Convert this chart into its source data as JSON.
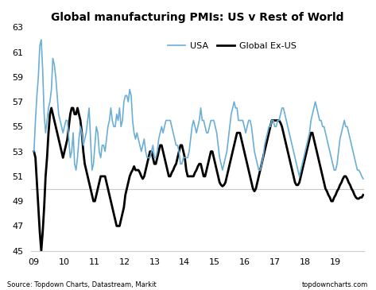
{
  "title": "Global manufacturing PMIs: US v Rest of World",
  "source_left": "Source: Topdown Charts, Datastream, Markit",
  "source_right": "topdowncharts.com",
  "ylim": [
    45,
    63
  ],
  "yticks": [
    45,
    47,
    49,
    51,
    53,
    55,
    57,
    59,
    61,
    63
  ],
  "xtick_labels": [
    "09",
    "10",
    "11",
    "12",
    "13",
    "14",
    "15",
    "16",
    "17",
    "18",
    "19"
  ],
  "usa_color": "#6baed6",
  "global_color": "#000000",
  "legend_usa": "USA",
  "legend_global": "Global Ex-US",
  "background_color": "#ffffff",
  "hline_y": 50.0,
  "hline_color": "#c8c8c8",
  "usa": [
    53.0,
    55.5,
    57.5,
    59.0,
    61.5,
    62.0,
    59.5,
    56.0,
    54.5,
    55.5,
    56.5,
    57.0,
    58.0,
    60.5,
    60.0,
    59.0,
    57.5,
    56.0,
    55.5,
    55.0,
    54.5,
    55.0,
    55.5,
    55.5,
    54.0,
    52.5,
    53.0,
    54.5,
    52.0,
    51.5,
    52.5,
    54.0,
    55.0,
    54.5,
    53.5,
    54.0,
    54.5,
    55.5,
    56.5,
    54.0,
    51.5,
    52.0,
    53.5,
    55.0,
    54.5,
    53.0,
    52.5,
    53.5,
    53.5,
    53.0,
    54.0,
    55.0,
    55.5,
    56.5,
    55.5,
    55.0,
    55.0,
    56.0,
    55.5,
    56.5,
    55.0,
    55.5,
    57.0,
    57.5,
    57.5,
    57.0,
    58.0,
    57.5,
    55.5,
    54.5,
    54.0,
    54.5,
    54.0,
    53.5,
    53.0,
    53.5,
    54.0,
    53.0,
    52.5,
    52.5,
    52.5,
    53.0,
    53.5,
    52.5,
    52.5,
    53.0,
    54.0,
    54.5,
    55.0,
    54.5,
    55.0,
    55.5,
    55.5,
    55.5,
    55.5,
    55.0,
    54.5,
    54.0,
    53.5,
    53.5,
    53.0,
    52.0,
    52.0,
    52.5,
    52.5,
    52.5,
    52.5,
    53.0,
    54.0,
    55.0,
    55.5,
    55.0,
    54.5,
    55.0,
    55.5,
    56.5,
    55.5,
    55.5,
    55.0,
    54.5,
    54.5,
    55.0,
    55.5,
    55.5,
    55.5,
    55.0,
    54.5,
    53.5,
    52.5,
    52.0,
    51.5,
    52.0,
    52.5,
    53.0,
    54.0,
    55.0,
    56.0,
    56.5,
    57.0,
    56.5,
    56.5,
    55.5,
    55.5,
    55.5,
    55.5,
    55.0,
    54.5,
    55.0,
    55.5,
    55.5,
    55.0,
    54.0,
    53.0,
    52.5,
    52.0,
    51.5,
    51.5,
    52.0,
    52.5,
    53.5,
    54.0,
    54.5,
    55.0,
    55.0,
    55.5,
    55.5,
    55.0,
    55.0,
    55.5,
    55.5,
    56.0,
    56.5,
    56.5,
    56.0,
    55.5,
    55.0,
    54.5,
    54.0,
    53.5,
    53.0,
    52.5,
    52.0,
    51.5,
    51.0,
    51.5,
    52.0,
    52.5,
    53.0,
    53.5,
    54.0,
    54.5,
    55.5,
    56.0,
    56.5,
    57.0,
    56.5,
    56.0,
    55.5,
    55.5,
    55.0,
    55.0,
    54.5,
    54.0,
    53.5,
    53.0,
    52.5,
    52.0,
    51.5,
    51.5,
    52.0,
    53.0,
    54.0,
    54.5,
    55.0,
    55.5,
    55.0,
    55.0,
    54.5,
    54.0,
    53.5,
    53.0,
    52.5,
    52.0,
    51.5,
    51.5,
    51.3,
    51.0,
    50.8
  ],
  "global": [
    53.0,
    52.5,
    50.5,
    48.5,
    46.5,
    45.0,
    46.5,
    48.5,
    51.0,
    52.5,
    54.5,
    56.0,
    56.5,
    56.0,
    55.5,
    55.0,
    54.5,
    54.0,
    53.5,
    53.0,
    52.5,
    53.0,
    53.5,
    54.0,
    55.0,
    56.0,
    56.5,
    56.5,
    56.0,
    56.0,
    56.5,
    56.0,
    55.5,
    54.5,
    53.0,
    52.0,
    51.5,
    51.0,
    50.5,
    50.0,
    49.5,
    49.0,
    49.0,
    49.5,
    50.0,
    50.5,
    51.0,
    51.0,
    51.0,
    51.0,
    50.5,
    50.0,
    49.5,
    49.0,
    48.5,
    48.0,
    47.5,
    47.0,
    47.0,
    47.0,
    47.5,
    48.0,
    48.5,
    49.5,
    50.0,
    50.5,
    51.0,
    51.3,
    51.5,
    51.8,
    51.5,
    51.5,
    51.5,
    51.3,
    51.0,
    50.8,
    51.0,
    51.5,
    52.0,
    52.5,
    53.0,
    53.0,
    52.5,
    52.0,
    52.0,
    52.5,
    53.0,
    53.5,
    53.5,
    53.0,
    52.5,
    52.0,
    51.5,
    51.0,
    51.0,
    51.3,
    51.5,
    51.8,
    52.0,
    52.5,
    53.0,
    53.5,
    53.5,
    53.0,
    52.5,
    51.5,
    51.0,
    51.0,
    51.0,
    51.0,
    51.0,
    51.3,
    51.5,
    51.8,
    52.0,
    52.0,
    51.5,
    51.0,
    51.0,
    51.5,
    52.0,
    52.5,
    53.0,
    53.0,
    52.5,
    52.0,
    51.5,
    51.0,
    50.5,
    50.3,
    50.2,
    50.3,
    50.5,
    51.0,
    51.5,
    52.0,
    52.5,
    53.0,
    53.5,
    54.0,
    54.5,
    54.5,
    54.5,
    54.0,
    53.5,
    53.0,
    52.5,
    52.0,
    51.5,
    51.0,
    50.5,
    50.0,
    49.8,
    50.0,
    50.5,
    51.0,
    51.5,
    52.0,
    52.5,
    53.0,
    53.5,
    54.0,
    54.5,
    55.0,
    55.5,
    55.5,
    55.5,
    55.5,
    55.5,
    55.5,
    55.3,
    55.0,
    54.5,
    54.0,
    53.5,
    53.0,
    52.5,
    52.0,
    51.5,
    51.0,
    50.5,
    50.3,
    50.3,
    50.5,
    51.0,
    51.5,
    52.0,
    52.5,
    53.0,
    53.5,
    54.0,
    54.5,
    54.5,
    54.0,
    53.5,
    53.0,
    52.5,
    52.0,
    51.5,
    51.0,
    50.5,
    50.0,
    49.8,
    49.5,
    49.3,
    49.0,
    49.0,
    49.3,
    49.5,
    49.8,
    50.0,
    50.3,
    50.5,
    50.8,
    51.0,
    51.0,
    50.8,
    50.5,
    50.3,
    50.0,
    49.8,
    49.5,
    49.3,
    49.2,
    49.2,
    49.3,
    49.3,
    49.5
  ]
}
